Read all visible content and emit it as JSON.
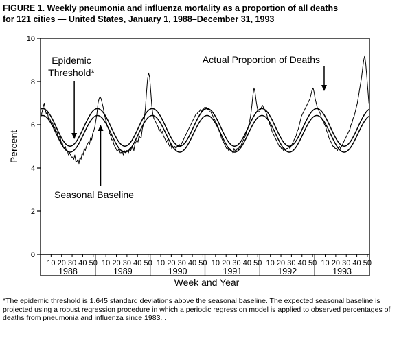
{
  "figure": {
    "title_line1": "FIGURE 1. Weekly pneumonia and influenza mortality as a proportion of all deaths",
    "title_line2": "for 121 cities — United States, January 1, 1988–December 31, 1993",
    "footnote": "*The epidemic threshold is 1.645 standard deviations above the seasonal baseline. The expected seasonal baseline is projected using a robust regression procedure in which a periodic regression model is applied to observed percentages of deaths from pneumonia and influenza since 1983. ."
  },
  "chart_data": {
    "type": "line",
    "ylabel": "Percent",
    "xlabel": "Week and Year",
    "ylim": [
      0,
      10
    ],
    "y_ticks": [
      0,
      2,
      4,
      6,
      8,
      10
    ],
    "x_unit": "week number within year",
    "years": [
      "1988",
      "1989",
      "1990",
      "1991",
      "1992",
      "1993"
    ],
    "week_tick_labels": [
      "10",
      "20",
      "30",
      "40",
      "50"
    ],
    "weeks_per_year": 52,
    "grid": false,
    "annotations": [
      {
        "id": "epidemic-threshold",
        "text_line1": "Epidemic",
        "text_line2": "Threshold*",
        "points_to_year": "1988",
        "points_to_week": 32
      },
      {
        "id": "actual-proportion",
        "text": "Actual Proportion of Deaths",
        "points_to_year": "1993",
        "points_to_week": 9
      },
      {
        "id": "seasonal-baseline",
        "text": "Seasonal Baseline",
        "points_to_year": "1989",
        "points_to_week": 5
      }
    ],
    "series": [
      {
        "key": "threshold",
        "model": "sinusoid",
        "mean": 5.88,
        "amplitude": 0.87,
        "peak_week": 2
      },
      {
        "key": "baseline",
        "model": "sinusoid",
        "mean": 5.58,
        "amplitude": 0.85,
        "peak_week": 2
      },
      {
        "key": "actual",
        "note": "approximate weekly values read from chart",
        "values": {
          "1988": [
            6.4,
            6.6,
            6.8,
            7.0,
            6.7,
            6.5,
            6.6,
            6.3,
            6.3,
            6.2,
            6.0,
            6.1,
            5.8,
            5.9,
            5.6,
            5.7,
            5.5,
            5.4,
            5.5,
            5.2,
            5.2,
            5.0,
            4.9,
            5.0,
            4.8,
            4.8,
            4.6,
            4.7,
            4.6,
            4.5,
            4.5,
            4.4,
            4.6,
            4.3,
            4.3,
            4.4,
            4.2,
            4.5,
            4.4,
            4.7,
            4.6,
            4.9,
            4.8,
            5.0,
            5.1,
            5.2,
            5.1,
            5.4,
            5.3,
            5.6,
            5.7,
            5.9
          ],
          "1989": [
            6.2,
            6.5,
            7.0,
            7.2,
            7.3,
            7.2,
            7.0,
            6.8,
            6.5,
            6.3,
            6.1,
            5.9,
            5.8,
            5.6,
            5.5,
            5.3,
            5.3,
            5.1,
            5.0,
            4.9,
            4.8,
            4.8,
            4.9,
            4.7,
            4.7,
            4.8,
            4.6,
            4.8,
            4.7,
            4.8,
            4.8,
            4.7,
            4.9,
            4.8,
            4.9,
            5.0,
            4.8,
            5.1,
            5.2,
            5.3,
            5.2,
            5.5,
            5.4,
            5.4,
            5.8,
            6.0,
            6.3,
            6.8,
            7.5,
            8.1,
            8.4,
            8.2
          ],
          "1990": [
            7.6,
            6.9,
            6.5,
            6.3,
            6.2,
            6.1,
            6.0,
            5.9,
            5.7,
            5.8,
            5.6,
            5.7,
            5.5,
            5.4,
            5.3,
            5.2,
            5.3,
            5.1,
            5.0,
            5.1,
            4.9,
            5.0,
            4.9,
            5.0,
            4.9,
            5.0,
            5.0,
            5.1,
            5.0,
            5.1,
            5.2,
            5.3,
            5.4,
            5.5,
            5.6,
            5.7,
            5.8,
            5.9,
            6.0,
            6.1,
            6.2,
            6.3,
            6.4,
            6.5,
            6.5,
            6.6,
            6.6,
            6.7,
            6.6,
            6.7,
            6.7,
            6.8
          ],
          "1991": [
            6.8,
            6.8,
            6.7,
            6.7,
            6.6,
            6.6,
            6.5,
            6.4,
            6.3,
            6.2,
            6.1,
            6.0,
            5.9,
            5.7,
            5.6,
            5.4,
            5.3,
            5.2,
            5.1,
            5.0,
            4.9,
            4.9,
            4.8,
            4.9,
            4.8,
            4.8,
            4.7,
            4.9,
            4.8,
            4.8,
            4.9,
            4.8,
            5.0,
            4.9,
            5.1,
            5.2,
            5.3,
            5.4,
            5.5,
            5.7,
            5.8,
            6.0,
            6.2,
            6.5,
            6.9,
            7.4,
            7.7,
            7.5,
            7.1,
            6.8,
            6.6,
            6.6
          ],
          "1992": [
            6.7,
            6.8,
            6.9,
            6.8,
            6.7,
            6.6,
            6.5,
            6.3,
            6.2,
            6.0,
            5.9,
            5.7,
            5.6,
            5.5,
            5.4,
            5.3,
            5.2,
            5.1,
            5.0,
            5.0,
            4.9,
            4.9,
            4.8,
            4.9,
            4.8,
            4.9,
            4.9,
            5.0,
            4.9,
            5.0,
            5.1,
            5.2,
            5.3,
            5.4,
            5.5,
            5.7,
            5.8,
            6.0,
            6.2,
            6.4,
            6.5,
            6.6,
            6.7,
            6.8,
            6.9,
            7.0,
            7.1,
            7.2,
            7.4,
            7.6,
            7.7,
            7.5
          ],
          "1993": [
            7.2,
            7.0,
            6.8,
            6.7,
            6.6,
            6.5,
            6.3,
            6.2,
            6.1,
            6.0,
            5.9,
            5.7,
            5.6,
            5.4,
            5.3,
            5.2,
            5.1,
            5.0,
            5.0,
            4.9,
            4.9,
            4.8,
            4.9,
            5.0,
            4.9,
            5.0,
            5.1,
            5.2,
            5.3,
            5.4,
            5.5,
            5.6,
            5.7,
            5.8,
            6.0,
            6.1,
            6.3,
            6.4,
            6.6,
            6.8,
            7.0,
            7.3,
            7.6,
            7.9,
            8.2,
            8.6,
            9.0,
            9.2,
            8.8,
            8.2,
            7.6,
            7.0
          ]
        }
      }
    ]
  }
}
